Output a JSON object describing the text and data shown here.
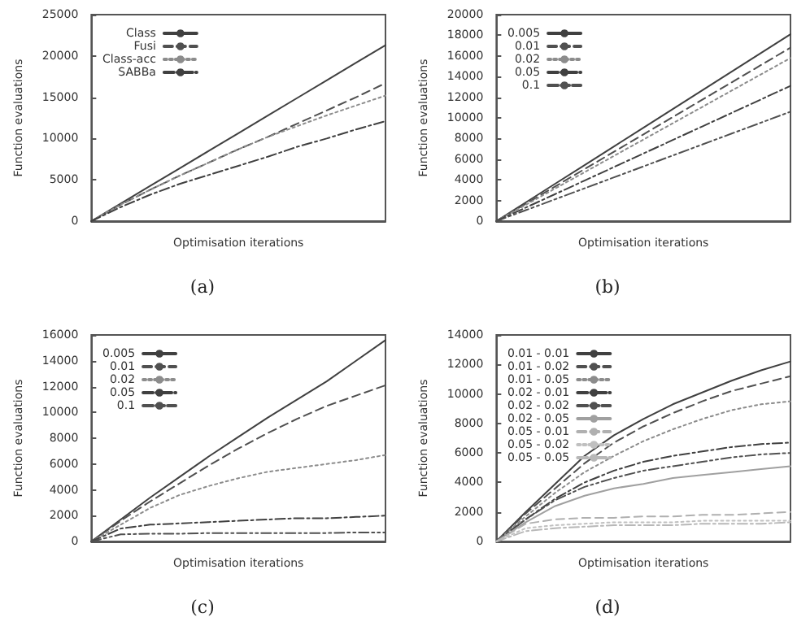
{
  "chart_data": [
    {
      "type": "line",
      "xlabel": "Optimisation iterations",
      "ylabel": "Function evaluations",
      "annotations": [
        "(a)"
      ],
      "legend": "top left",
      "grid": false,
      "marker": "none",
      "categories": [
        null,
        null,
        null,
        null,
        null,
        null,
        null,
        null,
        null,
        null,
        null
      ],
      "ylim": [
        0,
        25000
      ],
      "yticks": [
        0,
        5000,
        10000,
        15000,
        20000,
        25000
      ],
      "tick_labels": "y",
      "series": [
        {
          "name": "Class",
          "color": "#404040",
          "line_style": "solid",
          "values": [
            0,
            2130,
            4260,
            6390,
            8520,
            10650,
            12780,
            14910,
            17040,
            19170,
            21300
          ]
        },
        {
          "name": "Fusi",
          "color": "#505050",
          "line_style": "dashed",
          "values": [
            0,
            2000,
            3800,
            5500,
            7100,
            8700,
            10200,
            11800,
            13400,
            15000,
            16700
          ]
        },
        {
          "name": "Class-acc",
          "color": "#8c8c8c",
          "line_style": "dotted",
          "values": [
            0,
            2000,
            3800,
            5500,
            7100,
            8700,
            10200,
            11500,
            12800,
            14000,
            15200
          ]
        },
        {
          "name": "SABBa",
          "color": "#404040",
          "line_style": "dashdot",
          "values": [
            0,
            1700,
            3200,
            4500,
            5600,
            6700,
            7800,
            9000,
            10000,
            11100,
            12100
          ]
        }
      ]
    },
    {
      "type": "line",
      "xlabel": "Optimisation iterations",
      "ylabel": "Function evaluations",
      "annotations": [
        "(b)"
      ],
      "legend": "top left",
      "grid": false,
      "marker": "none",
      "categories": [
        null,
        null,
        null,
        null,
        null,
        null,
        null,
        null,
        null,
        null,
        null
      ],
      "ylim": [
        0,
        20000
      ],
      "yticks": [
        0,
        2000,
        4000,
        6000,
        8000,
        10000,
        12000,
        14000,
        16000,
        18000,
        20000
      ],
      "tick_labels": "y",
      "series": [
        {
          "name": "0.005",
          "color": "#404040",
          "line_style": "solid",
          "values": [
            0,
            1810,
            3620,
            5430,
            7240,
            9050,
            10860,
            12670,
            14480,
            16290,
            18100
          ]
        },
        {
          "name": "0.01",
          "color": "#505050",
          "line_style": "dashed",
          "values": [
            0,
            1680,
            3360,
            5040,
            6720,
            8400,
            10080,
            11760,
            13440,
            15120,
            16800
          ]
        },
        {
          "name": "0.02",
          "color": "#8c8c8c",
          "line_style": "dotted",
          "values": [
            0,
            1580,
            3160,
            4740,
            6320,
            7900,
            9480,
            11060,
            12640,
            14220,
            15800
          ]
        },
        {
          "name": "0.05",
          "color": "#404040",
          "line_style": "dashdot",
          "values": [
            0,
            1310,
            2620,
            3930,
            5240,
            6550,
            7860,
            9170,
            10480,
            11790,
            13100
          ]
        },
        {
          "name": "0.1",
          "color": "#505050",
          "line_style": "dashdotdot",
          "values": [
            0,
            1060,
            2120,
            3180,
            4240,
            5300,
            6360,
            7420,
            8480,
            9540,
            10600
          ]
        }
      ]
    },
    {
      "type": "line",
      "xlabel": "Optimisation iterations",
      "ylabel": "Function evaluations",
      "annotations": [
        "(c)"
      ],
      "legend": "top left",
      "grid": false,
      "marker": "none",
      "categories": [
        null,
        null,
        null,
        null,
        null,
        null,
        null,
        null,
        null,
        null,
        null
      ],
      "ylim": [
        0,
        16000
      ],
      "yticks": [
        0,
        2000,
        4000,
        6000,
        8000,
        10000,
        12000,
        14000,
        16000
      ],
      "tick_labels": "y",
      "series": [
        {
          "name": "0.005",
          "color": "#404040",
          "line_style": "solid",
          "values": [
            0,
            1700,
            3400,
            5000,
            6600,
            8100,
            9600,
            11000,
            12400,
            14000,
            15600
          ]
        },
        {
          "name": "0.01",
          "color": "#505050",
          "line_style": "dashed",
          "values": [
            0,
            1600,
            3100,
            4500,
            5900,
            7200,
            8400,
            9500,
            10500,
            11300,
            12100
          ]
        },
        {
          "name": "0.02",
          "color": "#8c8c8c",
          "line_style": "dotted",
          "values": [
            0,
            1300,
            2600,
            3600,
            4300,
            4900,
            5400,
            5700,
            6000,
            6300,
            6700
          ]
        },
        {
          "name": "0.05",
          "color": "#404040",
          "line_style": "dashdot",
          "values": [
            0,
            1000,
            1300,
            1400,
            1500,
            1600,
            1700,
            1800,
            1800,
            1900,
            2000
          ]
        },
        {
          "name": "0.1",
          "color": "#505050",
          "line_style": "dashdotdot",
          "values": [
            0,
            550,
            600,
            600,
            650,
            650,
            650,
            650,
            650,
            700,
            700
          ]
        }
      ]
    },
    {
      "type": "line",
      "xlabel": "Optimisation iterations",
      "ylabel": "Function evaluations",
      "annotations": [
        "(d)"
      ],
      "legend": "top left",
      "grid": false,
      "marker": "none",
      "categories": [
        null,
        null,
        null,
        null,
        null,
        null,
        null,
        null,
        null,
        null,
        null
      ],
      "ylim": [
        0,
        14000
      ],
      "yticks": [
        0,
        2000,
        4000,
        6000,
        8000,
        10000,
        12000,
        14000
      ],
      "tick_labels": "y",
      "series": [
        {
          "name": "0.01 - 0.01",
          "color": "#404040",
          "line_style": "solid",
          "values": [
            0,
            2000,
            3900,
            5800,
            7200,
            8300,
            9300,
            10100,
            10900,
            11600,
            12200
          ]
        },
        {
          "name": "0.01 - 0.02",
          "color": "#505050",
          "line_style": "dashed",
          "values": [
            0,
            1900,
            3600,
            5300,
            6700,
            7800,
            8700,
            9500,
            10200,
            10700,
            11200
          ]
        },
        {
          "name": "0.01 - 0.05",
          "color": "#8c8c8c",
          "line_style": "dotted",
          "values": [
            0,
            1700,
            3300,
            4700,
            5800,
            6800,
            7600,
            8300,
            8900,
            9300,
            9500
          ]
        },
        {
          "name": "0.02 - 0.01",
          "color": "#404040",
          "line_style": "dashdot",
          "values": [
            0,
            1500,
            2900,
            4000,
            4800,
            5400,
            5800,
            6100,
            6400,
            6600,
            6700
          ]
        },
        {
          "name": "0.02 - 0.02",
          "color": "#505050",
          "line_style": "dashdotdot",
          "values": [
            0,
            1500,
            2800,
            3700,
            4300,
            4800,
            5100,
            5400,
            5700,
            5900,
            6000
          ]
        },
        {
          "name": "0.02 - 0.05",
          "color": "#a0a0a0",
          "line_style": "solid",
          "values": [
            0,
            1300,
            2400,
            3100,
            3600,
            3900,
            4300,
            4500,
            4700,
            4900,
            5100
          ]
        },
        {
          "name": "0.05 - 0.01",
          "color": "#b0b0b0",
          "line_style": "dashed",
          "values": [
            0,
            1200,
            1500,
            1600,
            1600,
            1700,
            1700,
            1800,
            1800,
            1900,
            2000
          ]
        },
        {
          "name": "0.05 - 0.02",
          "color": "#c0c0c0",
          "line_style": "dotted",
          "values": [
            0,
            900,
            1100,
            1200,
            1300,
            1300,
            1300,
            1400,
            1400,
            1400,
            1400
          ]
        },
        {
          "name": "0.05 - 0.05",
          "color": "#b8b8b8",
          "line_style": "dashdot",
          "values": [
            0,
            700,
            900,
            1000,
            1100,
            1100,
            1100,
            1200,
            1200,
            1200,
            1300
          ]
        }
      ]
    }
  ]
}
